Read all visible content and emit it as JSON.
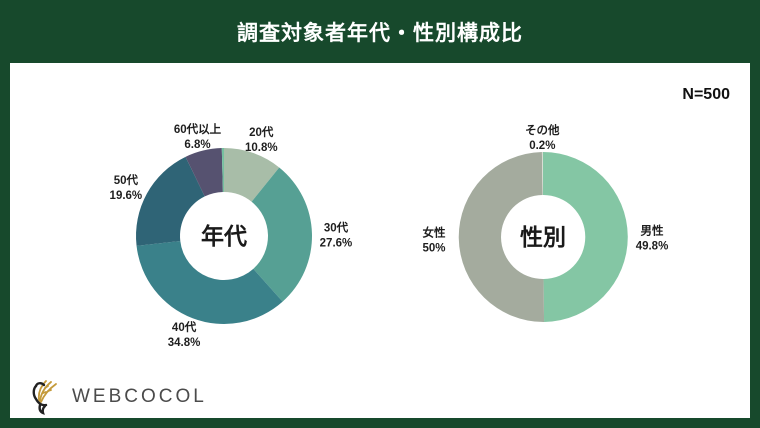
{
  "header": {
    "title": "調査対象者年代・性別構成比",
    "sample_size": "N=500"
  },
  "footer": {
    "logo_text": "WEBCOCOL",
    "logo_icon": "bird-wheat-emblem"
  },
  "colors": {
    "frame_green": "#17492c",
    "canvas_white": "#ffffff",
    "label_text": "#1f1f1f",
    "logo_text_color": "#4b4b4b",
    "logo_gold": "#c49a3a",
    "logo_black": "#222222"
  },
  "chart_data": [
    {
      "type": "pie",
      "donut": true,
      "center_label": "年代",
      "legend_position": "outside-labels",
      "slices": [
        {
          "label": "20代",
          "value": 10.8,
          "value_label": "10.8%",
          "color": "#a8bda8"
        },
        {
          "label": "30代",
          "value": 27.6,
          "value_label": "27.6%",
          "color": "#56a094"
        },
        {
          "label": "40代",
          "value": 34.8,
          "value_label": "34.8%",
          "color": "#3a818a"
        },
        {
          "label": "50代",
          "value": 19.6,
          "value_label": "19.6%",
          "color": "#2f6476"
        },
        {
          "label": "60代以上",
          "value": 6.8,
          "value_label": "6.8%",
          "color": "#565270"
        },
        {
          "label": "",
          "value": 0.4,
          "value_label": "",
          "color": "#76c0a0"
        }
      ]
    },
    {
      "type": "pie",
      "donut": true,
      "center_label": "性別",
      "legend_position": "outside-labels",
      "slices": [
        {
          "label": "男性",
          "value": 49.8,
          "value_label": "49.8%",
          "color": "#84c6a4"
        },
        {
          "label": "女性",
          "value": 50,
          "value_label": "50%",
          "color": "#a4ab9e"
        },
        {
          "label": "その他",
          "value": 0.2,
          "value_label": "0.2%",
          "color": "#d6dcd2"
        }
      ]
    }
  ]
}
